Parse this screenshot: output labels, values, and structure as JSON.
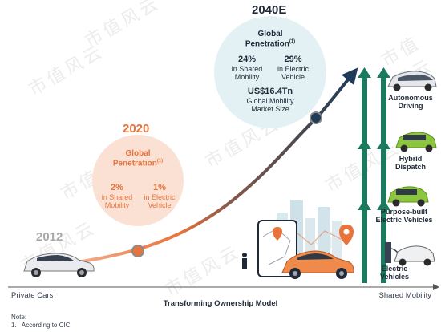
{
  "milestones": {
    "y2012": {
      "year": "2012"
    },
    "y2020": {
      "year": "2020",
      "heading": "Global",
      "heading2": "Penetration",
      "sup": "(1)",
      "stat1_value": "2%",
      "stat1_line1": "in Shared",
      "stat1_line2": "Mobility",
      "stat2_value": "1%",
      "stat2_line1": "in Electric",
      "stat2_line2": "Vehicle"
    },
    "y2040": {
      "year": "2040E",
      "heading": "Global",
      "heading2": "Penetration",
      "sup": "(1)",
      "stat1_value": "24%",
      "stat1_line1": "in Shared",
      "stat1_line2": "Mobility",
      "stat2_value": "29%",
      "stat2_line1": "in Electric",
      "stat2_line2": "Vehicle",
      "market_value": "US$16.4Tn",
      "market_line1": "Global Mobility",
      "market_line2": "Market Size"
    }
  },
  "stages": [
    {
      "line1": "Electric",
      "line2": "Vehicles"
    },
    {
      "line1": "Purpose-built",
      "line2": "Electric Vehicles"
    },
    {
      "line1": "Hybrid",
      "line2": "Dispatch"
    },
    {
      "line1": "Autonomous",
      "line2": "Driving"
    }
  ],
  "axis": {
    "left_label": "Private Cars",
    "center_label": "Transforming Ownership Model",
    "right_label": "Shared Mobility"
  },
  "note": {
    "title": "Note:",
    "item": "1.   According to CIC"
  },
  "watermark": "市值风云",
  "colors": {
    "accent_orange": "#e8743b",
    "peach_circle": "#fbe1d3",
    "teal_circle": "#e3f1f4",
    "navy": "#1f3b57",
    "green_arrow": "#1b7a5e"
  }
}
